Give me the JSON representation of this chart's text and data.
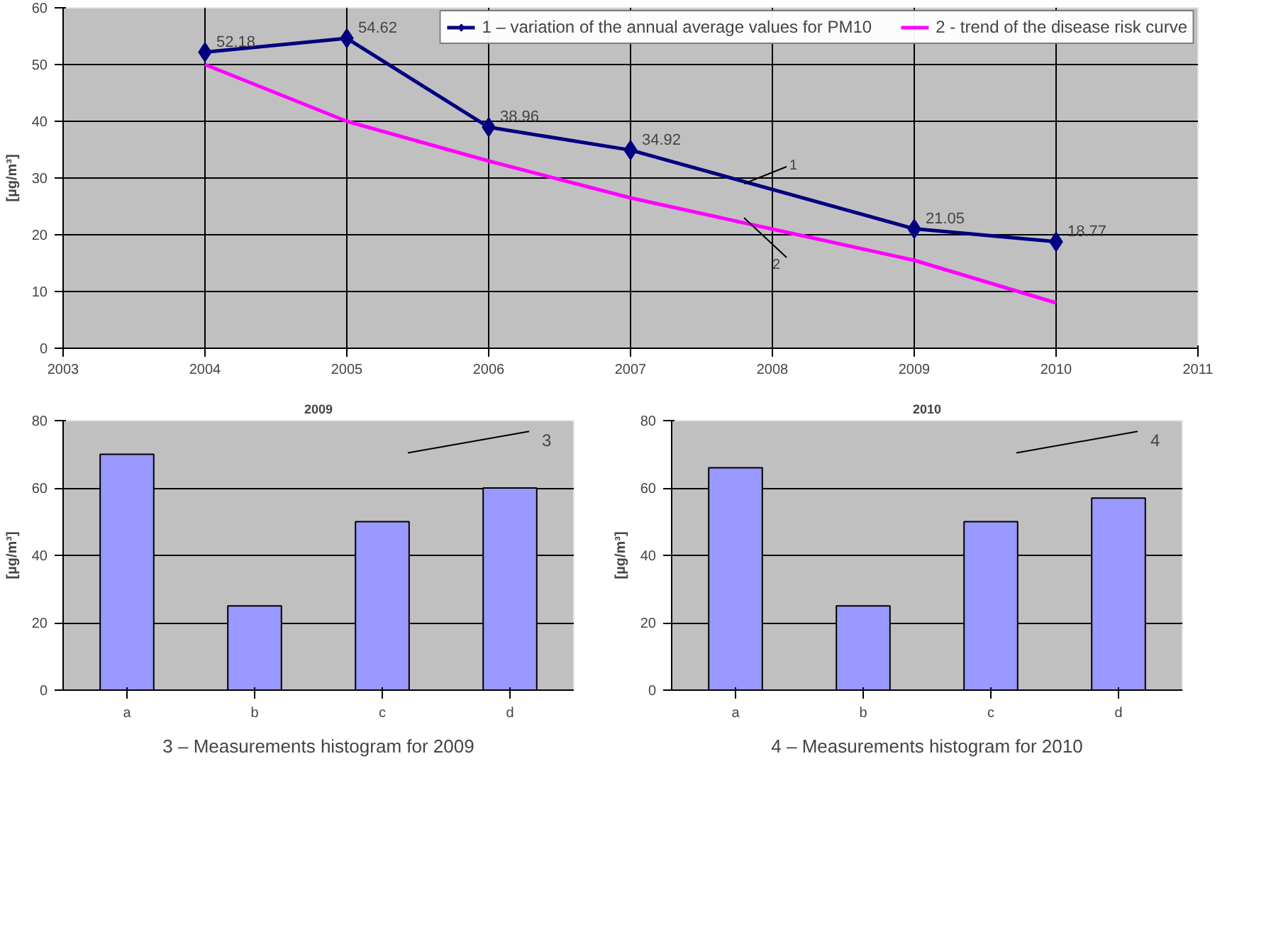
{
  "chart_data": [
    {
      "type": "line",
      "ylabel": "[µg/m³]",
      "x": [
        2004,
        2005,
        2006,
        2007,
        2009,
        2010
      ],
      "xlim": [
        2003,
        2011
      ],
      "xticks": [
        2003,
        2004,
        2005,
        2006,
        2007,
        2008,
        2009,
        2010,
        2011
      ],
      "ylim": [
        0,
        60
      ],
      "yticks": [
        0,
        10,
        20,
        30,
        40,
        50,
        60
      ],
      "grid": true,
      "legend": "top",
      "series": [
        {
          "name": "1 – variation of the annual average values for PM10",
          "color": "#000080",
          "values": [
            52.18,
            54.62,
            38.96,
            34.92,
            21.05,
            18.77
          ],
          "marker": "diamond",
          "data_labels": true
        },
        {
          "name": "2 - trend of the disease risk curve",
          "color": "#ff00ff",
          "x": [
            2004,
            2005,
            2006,
            2007,
            2008,
            2009,
            2010
          ],
          "values": [
            50,
            40,
            33,
            26.5,
            21,
            15.5,
            8
          ],
          "marker": "none"
        }
      ],
      "annotations": [
        {
          "text": "1",
          "x": 2007.8,
          "y": 29
        },
        {
          "text": "2",
          "x": 2007.8,
          "y": 23
        }
      ]
    },
    {
      "type": "bar",
      "title": "2009",
      "ylabel": "[µg/m³]",
      "categories": [
        "a",
        "b",
        "c",
        "d"
      ],
      "values": [
        70,
        25,
        50,
        60
      ],
      "color": "#9999ff",
      "ylim": [
        0,
        80
      ],
      "yticks": [
        0,
        20,
        40,
        60,
        80
      ],
      "grid": "y",
      "annotations": [
        "3",
        "3 – Measurements histogram for 2009"
      ]
    },
    {
      "type": "bar",
      "title": "2010",
      "ylabel": "[µg/m³]",
      "categories": [
        "a",
        "b",
        "c",
        "d"
      ],
      "values": [
        66,
        25,
        50,
        57
      ],
      "color": "#9999ff",
      "ylim": [
        0,
        80
      ],
      "yticks": [
        0,
        20,
        40,
        60,
        80
      ],
      "grid": "y",
      "annotations": [
        "4",
        "4 – Measurements histogram for 2010"
      ]
    }
  ]
}
